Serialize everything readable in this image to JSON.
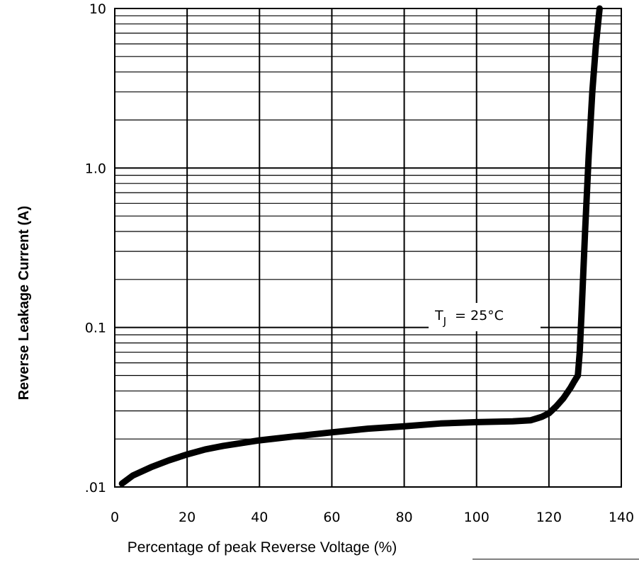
{
  "chart_data": {
    "type": "line",
    "xlabel": "Percentage of peak Reverse Voltage (%)",
    "ylabel": "Reverse Leakage Current (A)",
    "x_ticks": [
      "0",
      "20",
      "40",
      "60",
      "80",
      "100",
      "120",
      "140"
    ],
    "y_ticks": [
      ".01",
      "0.1",
      "1.0",
      "10"
    ],
    "xlim": [
      0,
      140
    ],
    "ylim": [
      0.01,
      10
    ],
    "y_scale": "log",
    "grid": true,
    "annotation": {
      "subscript_base": "T",
      "subscript": "J",
      "text": "= 25°C"
    },
    "series": [
      {
        "line_color": "#000000",
        "x": [
          2,
          5,
          10,
          15,
          20,
          25,
          30,
          40,
          50,
          60,
          70,
          80,
          90,
          100,
          110,
          115,
          118,
          120,
          122,
          124,
          126,
          127,
          128,
          128.5,
          129,
          130,
          131,
          132,
          133,
          134
        ],
        "y": [
          0.0105,
          0.0118,
          0.0133,
          0.0147,
          0.016,
          0.0172,
          0.0181,
          0.0196,
          0.0208,
          0.022,
          0.0232,
          0.024,
          0.025,
          0.0255,
          0.0258,
          0.0262,
          0.0275,
          0.029,
          0.032,
          0.036,
          0.042,
          0.046,
          0.05,
          0.07,
          0.12,
          0.4,
          1.2,
          3.0,
          6.0,
          10
        ]
      }
    ]
  }
}
